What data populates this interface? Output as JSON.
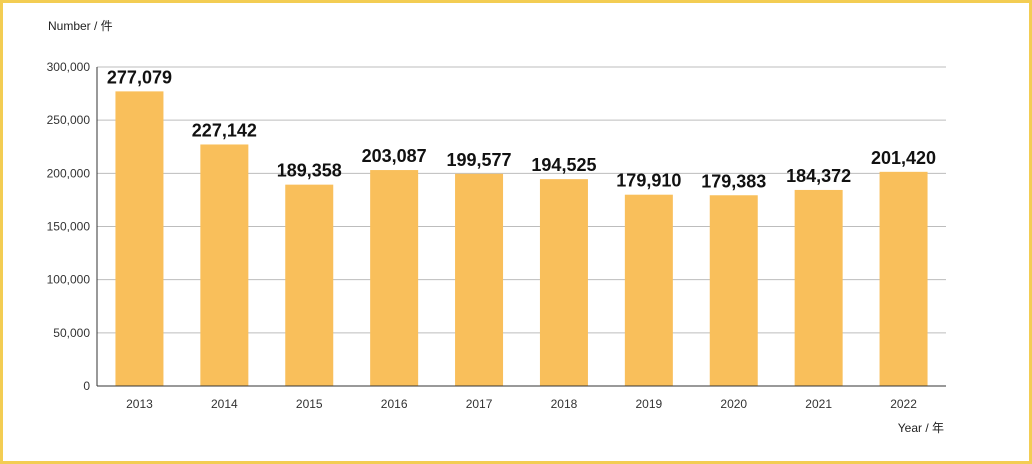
{
  "chart_data": {
    "type": "bar",
    "ylabel": "Number / 件",
    "xlabel": "Year / 年",
    "categories": [
      "2013",
      "2014",
      "2015",
      "2016",
      "2017",
      "2018",
      "2019",
      "2020",
      "2021",
      "2022"
    ],
    "values": [
      277079,
      227142,
      189358,
      203087,
      199577,
      194525,
      179910,
      179383,
      184372,
      201420
    ],
    "data_labels": [
      "277,079",
      "227,142",
      "189,358",
      "203,087",
      "199,577",
      "194,525",
      "179,910",
      "179,383",
      "184,372",
      "201,420"
    ],
    "ylim": [
      0,
      300000
    ],
    "yticks": [
      0,
      50000,
      100000,
      150000,
      200000,
      250000,
      300000
    ],
    "ytick_labels": [
      "0",
      "50,000",
      "100,000",
      "150,000",
      "200,000",
      "250,000",
      "300,000"
    ],
    "grid": true,
    "bar_color": "#f9bf5b",
    "frame_color": "#f3cd53"
  }
}
